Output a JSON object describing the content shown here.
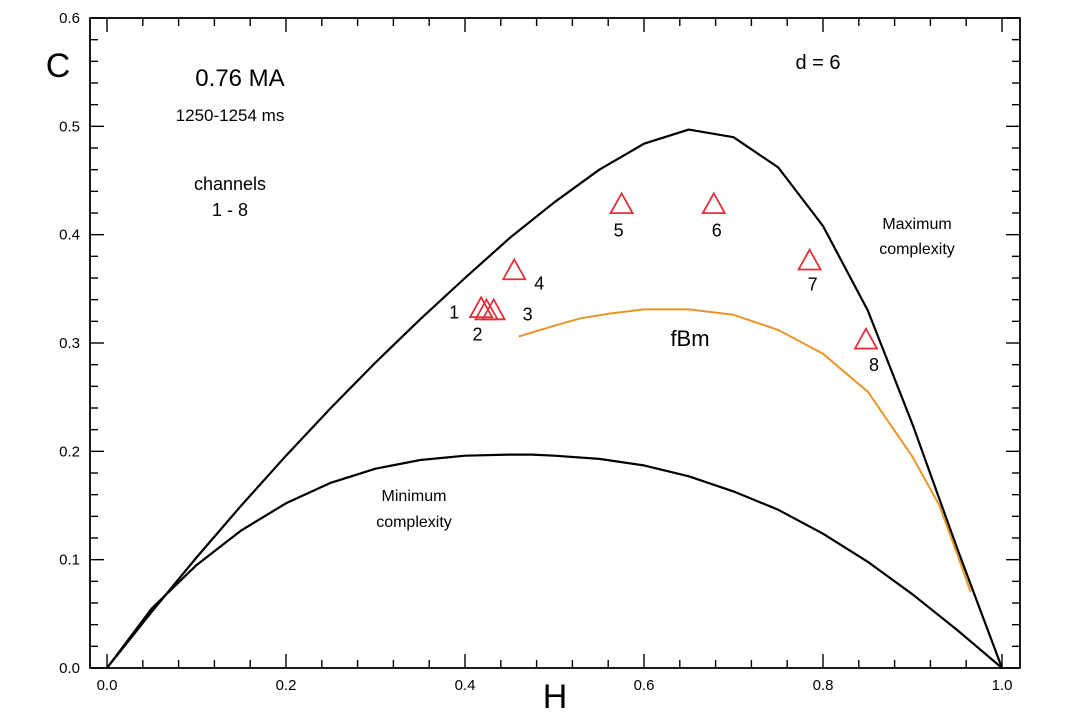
{
  "chart_data": {
    "type": "scatter",
    "title": "0.76 MA",
    "subtitle": "1250-1254 ms",
    "xlabel": "H",
    "ylabel": "C",
    "xlim": [
      0.0,
      1.0
    ],
    "ylim": [
      0.0,
      0.6
    ],
    "x_ticks": [
      "0.0",
      "0.2",
      "0.4",
      "0.6",
      "0.8",
      "1.0"
    ],
    "y_ticks": [
      "0.0",
      "0.1",
      "0.2",
      "0.3",
      "0.4",
      "0.5",
      "0.6"
    ],
    "grid": false,
    "annotations": {
      "channels_line1": "channels",
      "channels_line2": "1 -  8",
      "dimension": "d = 6",
      "max_line1": "Maximum",
      "max_line2": "complexity",
      "min_line1": "Minimum",
      "min_line2": "complexity",
      "fbm": "fBm"
    },
    "colors": {
      "points": "#e0303a",
      "fbm": "#e8962a",
      "curves": "#000000"
    },
    "points": [
      {
        "label": "1",
        "x": 0.418,
        "y": 0.332
      },
      {
        "label": "2",
        "x": 0.424,
        "y": 0.33
      },
      {
        "label": "3",
        "x": 0.432,
        "y": 0.33
      },
      {
        "label": "4",
        "x": 0.455,
        "y": 0.367
      },
      {
        "label": "5",
        "x": 0.575,
        "y": 0.428
      },
      {
        "label": "6",
        "x": 0.678,
        "y": 0.428
      },
      {
        "label": "7",
        "x": 0.785,
        "y": 0.376
      },
      {
        "label": "8",
        "x": 0.848,
        "y": 0.303
      }
    ],
    "curves": [
      {
        "x": [
          0.0,
          0.05,
          0.1,
          0.15,
          0.2,
          0.25,
          0.3,
          0.35,
          0.4,
          0.45,
          0.5,
          0.55,
          0.6,
          0.65,
          0.7,
          0.75,
          0.8,
          0.85,
          0.9,
          0.95,
          1.0
        ],
        "y": [
          0.0,
          0.052,
          0.102,
          0.15,
          0.196,
          0.24,
          0.282,
          0.322,
          0.36,
          0.397,
          0.43,
          0.46,
          0.484,
          0.497,
          0.49,
          0.462,
          0.408,
          0.33,
          0.225,
          0.11,
          0.0
        ]
      },
      {
        "x": [
          0.0,
          0.05,
          0.1,
          0.15,
          0.2,
          0.25,
          0.3,
          0.35,
          0.4,
          0.45,
          0.475,
          0.5,
          0.55,
          0.6,
          0.65,
          0.7,
          0.75,
          0.8,
          0.85,
          0.9,
          0.95,
          1.0
        ],
        "y": [
          0.0,
          0.055,
          0.095,
          0.127,
          0.152,
          0.171,
          0.184,
          0.192,
          0.196,
          0.197,
          0.197,
          0.196,
          0.193,
          0.187,
          0.177,
          0.163,
          0.146,
          0.124,
          0.098,
          0.068,
          0.035,
          0.0
        ]
      },
      {
        "x": [
          0.46,
          0.5,
          0.53,
          0.56,
          0.6,
          0.65,
          0.7,
          0.75,
          0.8,
          0.85,
          0.9,
          0.93,
          0.95,
          0.965
        ],
        "y": [
          0.306,
          0.316,
          0.323,
          0.327,
          0.331,
          0.331,
          0.326,
          0.312,
          0.29,
          0.255,
          0.195,
          0.15,
          0.105,
          0.07
        ]
      }
    ]
  }
}
